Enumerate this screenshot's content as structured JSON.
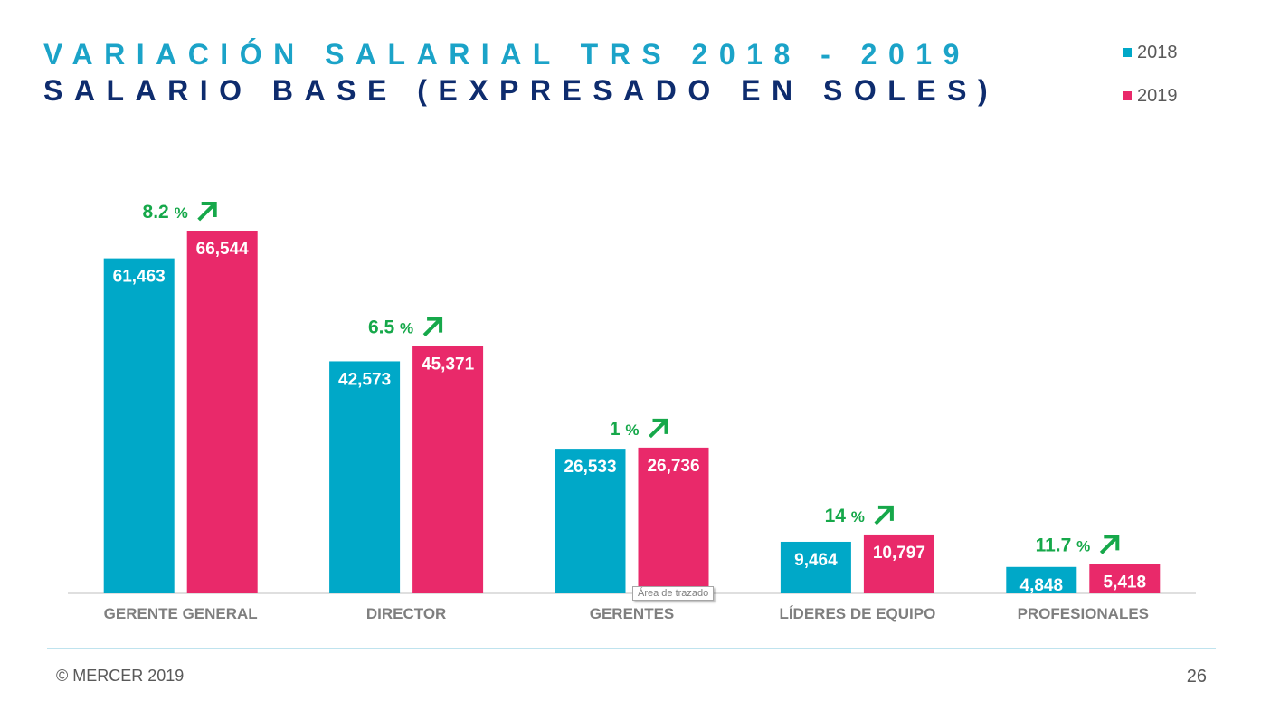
{
  "header": {
    "title": "VARIACIÓN SALARIAL TRS 2018 - 2019",
    "subtitle": "SALARIO BASE (EXPRESADO EN SOLES)"
  },
  "legend": [
    {
      "label": "2018",
      "color": "#00A8C8"
    },
    {
      "label": "2019",
      "color": "#E9296A"
    }
  ],
  "chart_data": {
    "type": "bar",
    "title": "VARIACIÓN SALARIAL TRS 2018 - 2019",
    "subtitle": "SALARIO BASE (EXPRESADO EN SOLES)",
    "categories": [
      "GERENTE GENERAL",
      "DIRECTOR",
      "GERENTES",
      "LÍDERES DE EQUIPO",
      "PROFESIONALES"
    ],
    "series": [
      {
        "name": "2018",
        "values": [
          61463,
          42573,
          26533,
          9464,
          4848
        ],
        "labels": [
          "61,463",
          "42,573",
          "26,533",
          "9,464",
          "4,848"
        ],
        "color": "#00A8C8"
      },
      {
        "name": "2019",
        "values": [
          66544,
          45371,
          26736,
          10797,
          5418
        ],
        "labels": [
          "66,544",
          "45,371",
          "26,736",
          "10,797",
          "5,418"
        ],
        "color": "#E9296A"
      }
    ],
    "annotations": [
      {
        "value": "8.2",
        "unit": "%"
      },
      {
        "value": "6.5",
        "unit": "%"
      },
      {
        "value": "1",
        "unit": "%"
      },
      {
        "value": "14",
        "unit": "%"
      },
      {
        "value": "11.7",
        "unit": "%"
      }
    ],
    "annotation_color": "#16A84A",
    "ylim": [
      0,
      66544
    ],
    "grid": false,
    "legend_position": "top-right"
  },
  "tooltip": {
    "text": "Área de trazado"
  },
  "footer": {
    "copyright": "© MERCER 2019",
    "page_number": "26"
  }
}
